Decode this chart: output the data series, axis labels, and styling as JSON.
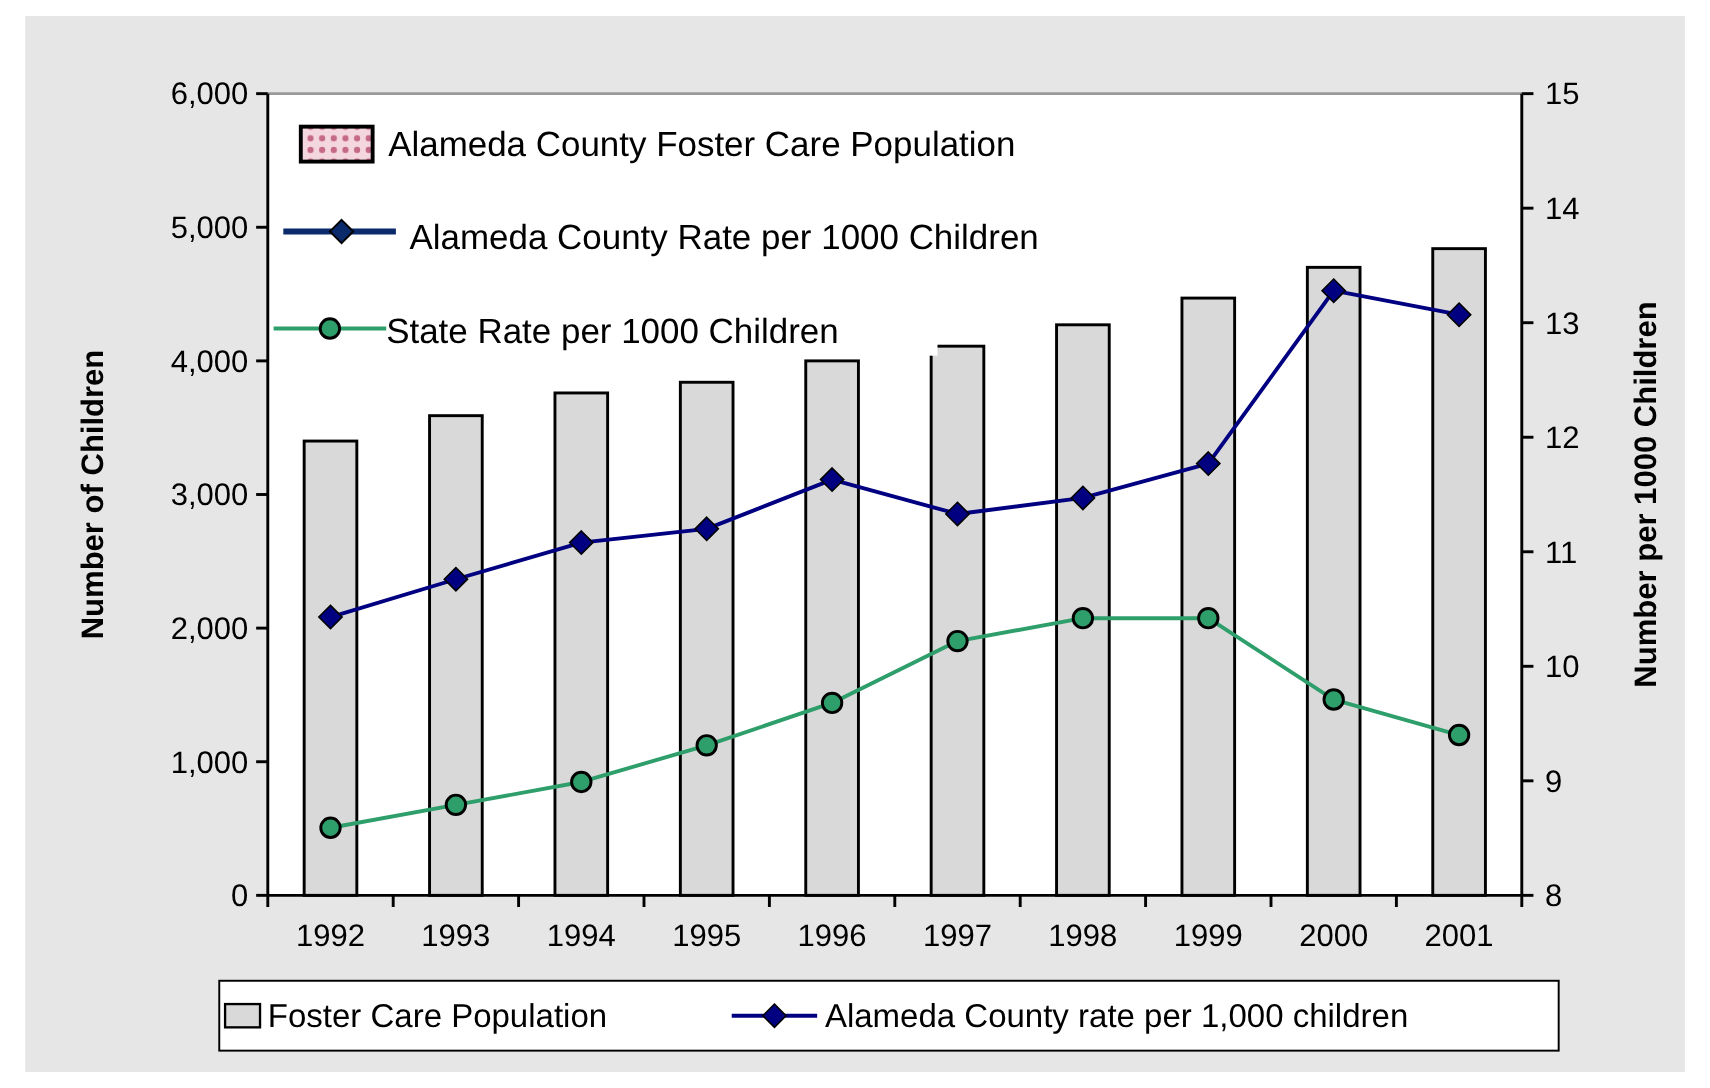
{
  "chart_data": {
    "type": "bar",
    "categories": [
      "1992",
      "1993",
      "1994",
      "1995",
      "1996",
      "1997",
      "1998",
      "1999",
      "2000",
      "2001"
    ],
    "series": [
      {
        "name": "Foster Care Population",
        "color": "#d9d9d9",
        "values": [
          3400,
          3590,
          3760,
          3840,
          4000,
          4110,
          4270,
          4470,
          4700,
          4840
        ]
      },
      {
        "name": "Alameda County rate per 1,000 children",
        "type": "line",
        "axis": "y2",
        "color": "#000080",
        "marker": "diamond",
        "values": [
          10.43,
          10.76,
          11.08,
          11.2,
          11.63,
          11.33,
          11.47,
          11.77,
          13.28,
          13.07
        ]
      },
      {
        "name": "State Rate per 1000 Children",
        "type": "line",
        "axis": "y2",
        "color": "#2e9e6b",
        "marker": "circle",
        "values": [
          8.59,
          8.79,
          8.99,
          9.31,
          9.68,
          10.22,
          10.42,
          10.42,
          9.71,
          9.4
        ]
      }
    ],
    "ylabel": "Number of Children",
    "y2label": "Number per 1000 Children",
    "ylim": [
      0,
      6000
    ],
    "yticks": [
      {
        "value": 0,
        "label": "0"
      },
      {
        "value": 1000,
        "label": "1,000"
      },
      {
        "value": 2000,
        "label": "2,000"
      },
      {
        "value": 3000,
        "label": "3,000"
      },
      {
        "value": 4000,
        "label": "4,000"
      },
      {
        "value": 5000,
        "label": "5,000"
      },
      {
        "value": 6000,
        "label": "6,000"
      }
    ],
    "y2lim": [
      8,
      15
    ],
    "y2ticks": [
      8,
      9,
      10,
      11,
      12,
      13,
      14,
      15
    ],
    "annotations": [
      "Alameda County Foster Care Population",
      "Alameda County Rate per 1000 Children"
    ],
    "legend": "bottom",
    "grid": false
  }
}
